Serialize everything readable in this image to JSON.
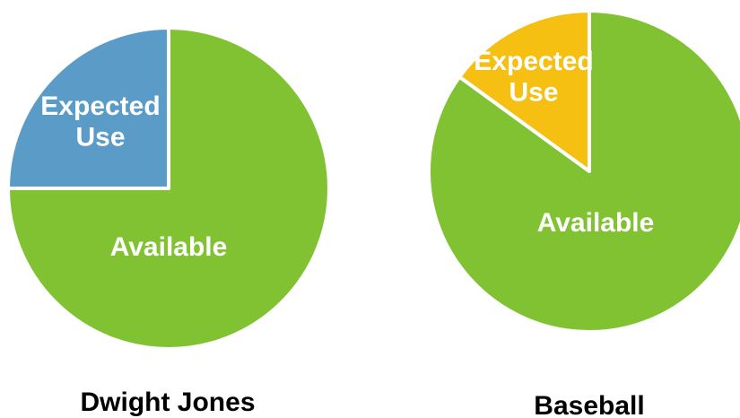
{
  "chart_data": [
    {
      "type": "pie",
      "title": "Dwight Jones",
      "slices": [
        {
          "label": [
            "Expected",
            "Use"
          ],
          "value": 25,
          "color": "#5b9bc8"
        },
        {
          "label": [
            "Available"
          ],
          "value": 75,
          "color": "#80c232"
        }
      ]
    },
    {
      "type": "pie",
      "title": "Baseball",
      "slices": [
        {
          "label": [
            "Expected",
            "Use"
          ],
          "value": 15,
          "color": "#f5c012"
        },
        {
          "label": [
            "Available"
          ],
          "value": 85,
          "color": "#80c232"
        }
      ]
    }
  ]
}
